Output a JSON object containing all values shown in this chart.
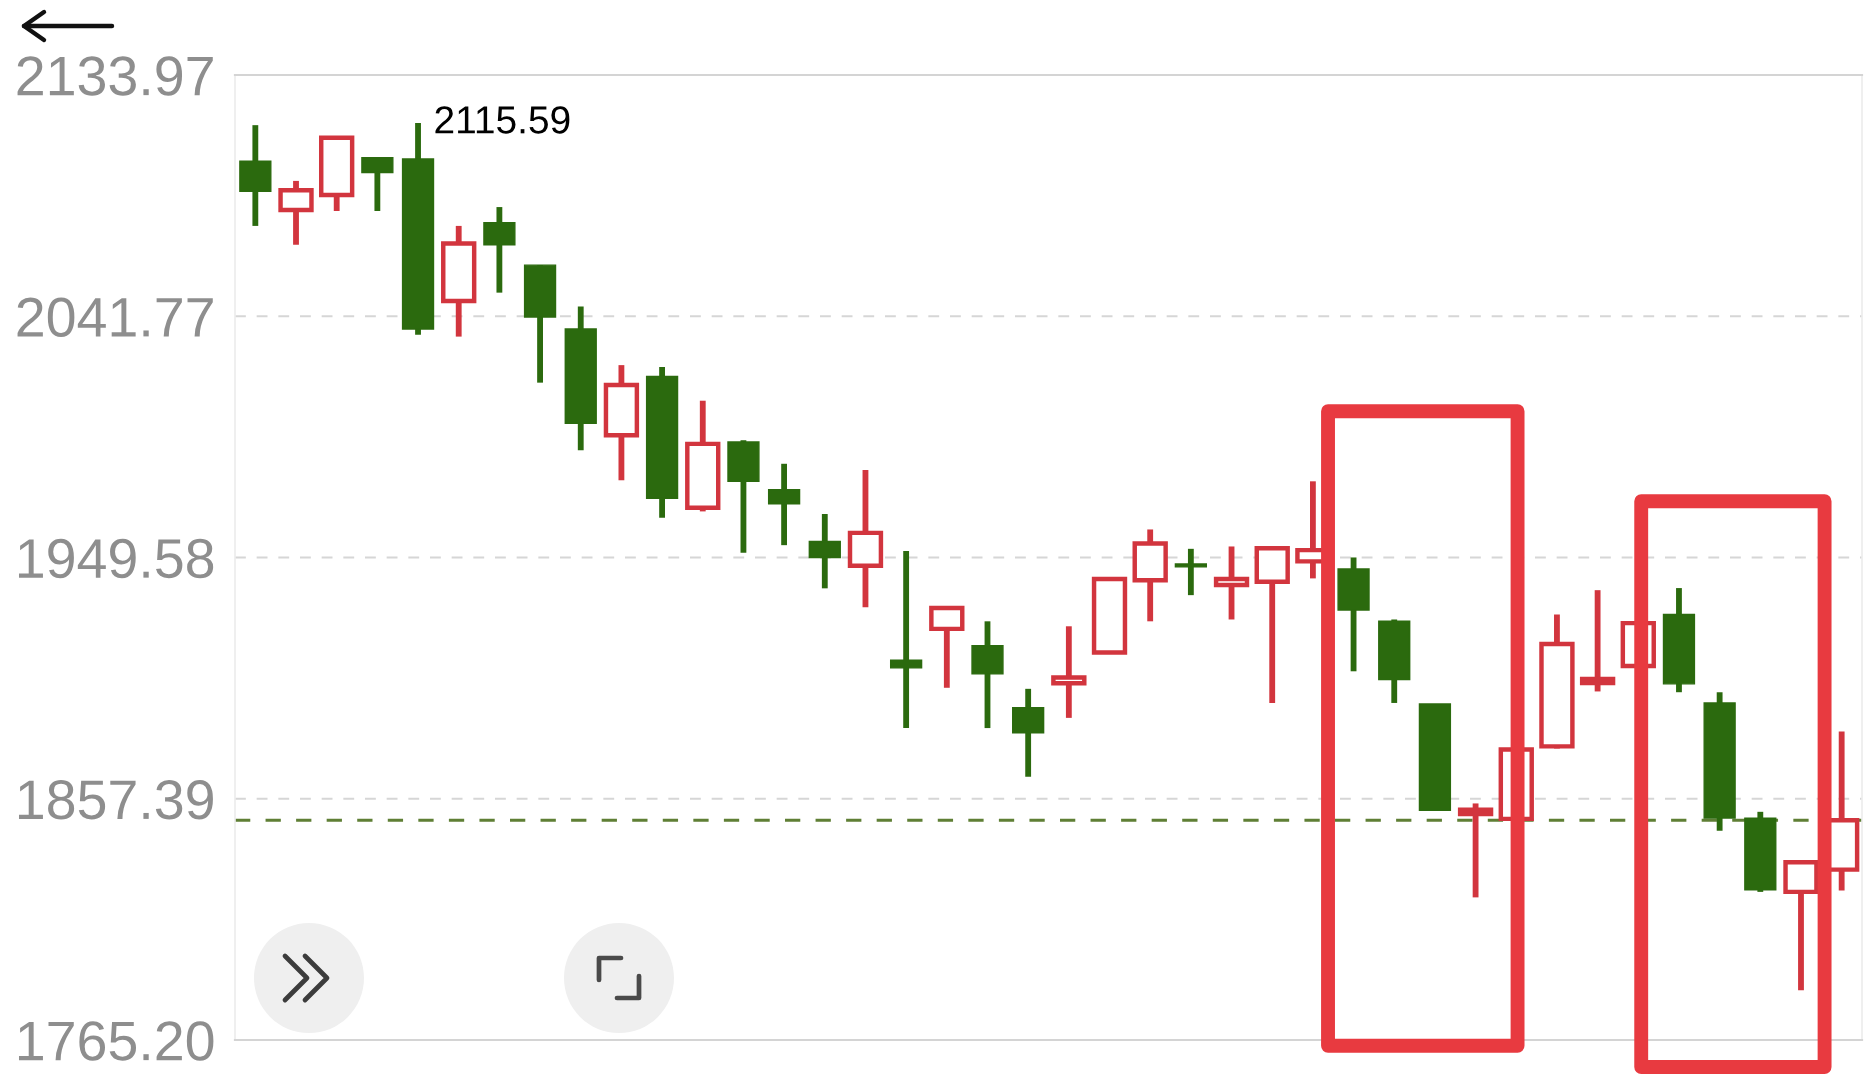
{
  "chart_data": {
    "type": "candlestick",
    "categories": [
      null,
      null,
      null,
      null,
      null,
      null,
      null,
      null,
      null,
      null,
      null,
      null,
      null,
      null,
      null,
      null,
      null,
      null,
      null,
      null,
      null,
      null,
      null,
      null,
      null,
      null,
      null,
      null,
      null,
      null,
      null,
      null,
      null,
      null,
      null,
      null,
      null,
      null,
      null,
      null
    ],
    "ohlc": [
      [
        2101.0,
        2114.8,
        2076.3,
        2089.5
      ],
      [
        2082.4,
        2093.5,
        2069.1,
        2089.9
      ],
      [
        2088.1,
        2110.2,
        2082.0,
        2110.0
      ],
      [
        2102.4,
        2102.6,
        2082.0,
        2096.7
      ],
      [
        2101.9,
        2115.59,
        2034.7,
        2036.9
      ],
      [
        2047.6,
        2076.3,
        2034.0,
        2069.6
      ],
      [
        2077.5,
        2083.5,
        2050.8,
        2069.1
      ],
      [
        2061.3,
        2061.3,
        2016.4,
        2041.5
      ],
      [
        2036.9,
        2045.5,
        1990.6,
        2000.9
      ],
      [
        1996.3,
        2023.1,
        1979.1,
        2015.5
      ],
      [
        2018.8,
        2022.4,
        1964.8,
        1972.2
      ],
      [
        1968.6,
        2009.5,
        1967.2,
        1993.0
      ],
      [
        1993.7,
        1994.4,
        1951.4,
        1978.7
      ],
      [
        1975.5,
        1985.4,
        1954.3,
        1970.1
      ],
      [
        1955.7,
        1966.2,
        1937.8,
        1949.6
      ],
      [
        1946.4,
        1983.0,
        1930.6,
        1959.0
      ],
      [
        1910.3,
        1952.1,
        1884.4,
        1907.4
      ],
      [
        1922.3,
        1930.3,
        1899.8,
        1930.3
      ],
      [
        1915.9,
        1925.2,
        1884.4,
        1905.1
      ],
      [
        1892.2,
        1899.4,
        1865.8,
        1882.6
      ],
      [
        1901.5,
        1923.3,
        1888.3,
        1903.7
      ],
      [
        1913.3,
        1941.4,
        1913.3,
        1941.4
      ],
      [
        1940.9,
        1960.3,
        1925.2,
        1954.9
      ],
      [
        1947.1,
        1952.9,
        1935.2,
        1946.0
      ],
      [
        1939.1,
        1953.8,
        1925.9,
        1941.4
      ],
      [
        1940.3,
        1953.1,
        1894.0,
        1953.1
      ],
      [
        1948.1,
        1978.7,
        1941.6,
        1952.4
      ],
      [
        1945.2,
        1949.6,
        1906.1,
        1929.5
      ],
      [
        1925.2,
        1925.9,
        1894.0,
        1902.9
      ],
      [
        1893.6,
        1893.6,
        1853.0,
        1853.0
      ],
      [
        1851.6,
        1855.6,
        1819.7,
        1853.2
      ],
      [
        1849.7,
        1876.2,
        1839.5,
        1876.2
      ],
      [
        1877.4,
        1927.8,
        1876.6,
        1916.5
      ],
      [
        1901.6,
        1937.1,
        1898.4,
        1903.2
      ],
      [
        1908.1,
        1935.6,
        1908.1,
        1924.5
      ],
      [
        1927.8,
        1937.9,
        1898.1,
        1901.3
      ],
      [
        1894.0,
        1898.1,
        1845.2,
        1850.0
      ],
      [
        1850.0,
        1852.4,
        1821.8,
        1822.6
      ],
      [
        1821.8,
        1833.9,
        1784.2,
        1833.1
      ],
      [
        1830.3,
        1883.1,
        1822.3,
        1849.2
      ]
    ],
    "colors": [
      "#2b6a0e",
      "#d2353e",
      "#d2353e",
      "#2b6a0e",
      "#2b6a0e",
      "#d2353e",
      "#2b6a0e",
      "#2b6a0e",
      "#2b6a0e",
      "#d2353e",
      "#2b6a0e",
      "#d2353e",
      "#2b6a0e",
      "#2b6a0e",
      "#2b6a0e",
      "#d2353e",
      "#2b6a0e",
      "#d2353e",
      "#2b6a0e",
      "#2b6a0e",
      "#d2353e",
      "#d2353e",
      "#d2353e",
      "#2b6a0e",
      "#d2353e",
      "#d2353e",
      "#d2353e",
      "#2b6a0e",
      "#2b6a0e",
      "#2b6a0e",
      "#d2353e",
      "#d2353e",
      "#d2353e",
      "#d2353e",
      "#d2353e",
      "#2b6a0e",
      "#2b6a0e",
      "#2b6a0e",
      "#d2353e",
      "#d2353e"
    ],
    "ylim": [
      1765.2,
      2133.97
    ],
    "yticks": [
      2133.97,
      2041.77,
      1949.58,
      1857.39,
      {
        "value": 1765.2,
        "label": "1765.20"
      }
    ],
    "grid": "y",
    "tick_labels": "y",
    "ref_lines": [
      {
        "axis": "y",
        "value": 1849.2,
        "color": "#5f7f35",
        "line_style": "dashed"
      }
    ],
    "annotations": [
      "2115.59"
    ]
  }
}
